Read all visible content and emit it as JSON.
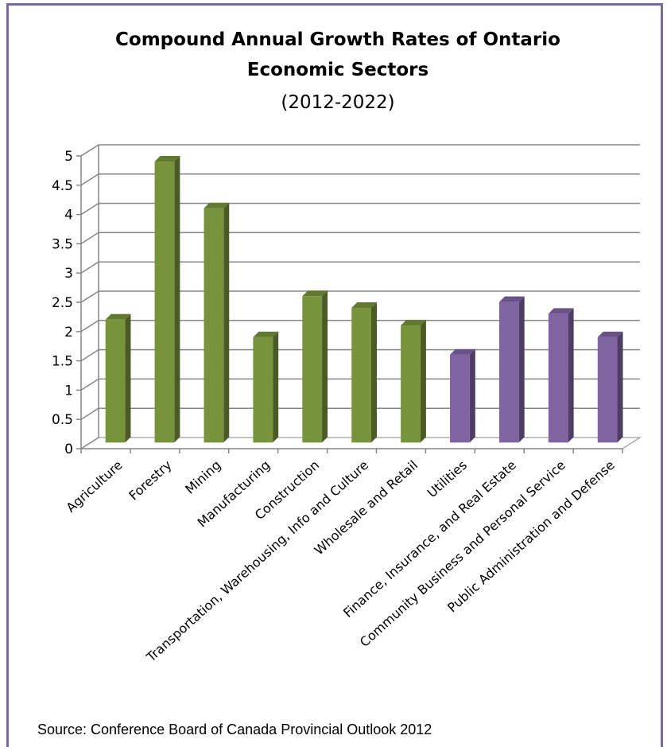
{
  "chart_data": {
    "type": "bar",
    "title_line1": "Compound Annual Growth Rates of Ontario",
    "title_line2": "Economic Sectors",
    "subtitle": "(2012-2022)",
    "categories": [
      "Agriculture",
      "Forestry",
      "Mining",
      "Manufacturing",
      "Construction",
      "Transportation, Warehousing, Info and Culture",
      "Wholesale and Retail",
      "Utilities",
      "Finance, Insurance, and Real Estate",
      "Community Business and Personal Service",
      "Public Administration and Defense"
    ],
    "values": [
      2.1,
      4.8,
      4.0,
      1.8,
      2.5,
      2.3,
      2.0,
      1.5,
      2.4,
      2.2,
      1.8
    ],
    "bar_colors": [
      "#77933c",
      "#77933c",
      "#77933c",
      "#77933c",
      "#77933c",
      "#77933c",
      "#77933c",
      "#8064a2",
      "#8064a2",
      "#8064a2",
      "#8064a2"
    ],
    "ylim": [
      0,
      5
    ],
    "yticks": [
      "0",
      "0.5",
      "1",
      "1.5",
      "2",
      "2.5",
      "3",
      "3.5",
      "4",
      "4.5",
      "5"
    ],
    "grid": true,
    "legend": "none"
  },
  "source": "Source: Conference Board of Canada Provincial Outlook 2012"
}
